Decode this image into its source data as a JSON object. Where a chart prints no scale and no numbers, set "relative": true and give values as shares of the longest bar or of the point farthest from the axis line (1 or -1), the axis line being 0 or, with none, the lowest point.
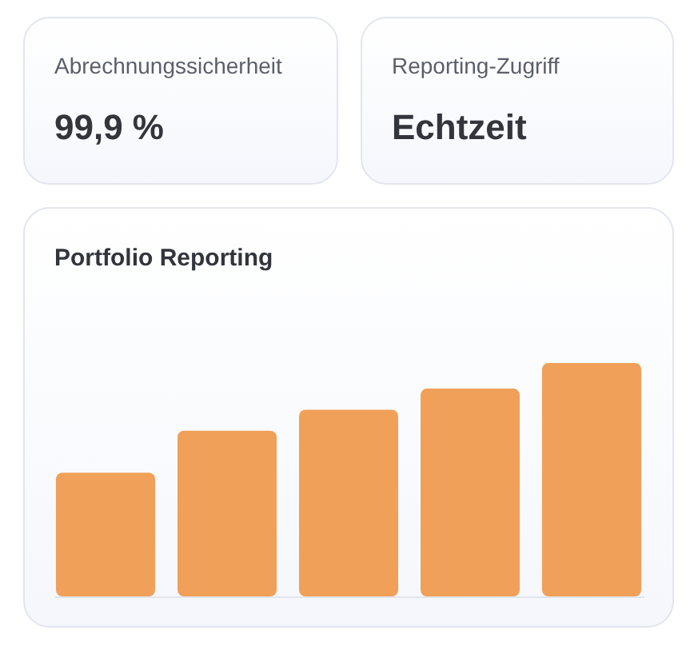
{
  "chart_data": [
    {
      "type": "other",
      "title": "Abrechnungssicherheit",
      "annotations": [
        "99,9 %"
      ]
    },
    {
      "type": "other",
      "title": "Reporting-Zugriff",
      "annotations": [
        "Echtzeit"
      ]
    },
    {
      "type": "bar",
      "title": "Portfolio Reporting",
      "categories": [
        null,
        null,
        null,
        null,
        null
      ],
      "values": [
        0.53,
        0.71,
        0.8,
        0.89,
        1
      ],
      "relative": true,
      "color": "#f0a059"
    }
  ]
}
